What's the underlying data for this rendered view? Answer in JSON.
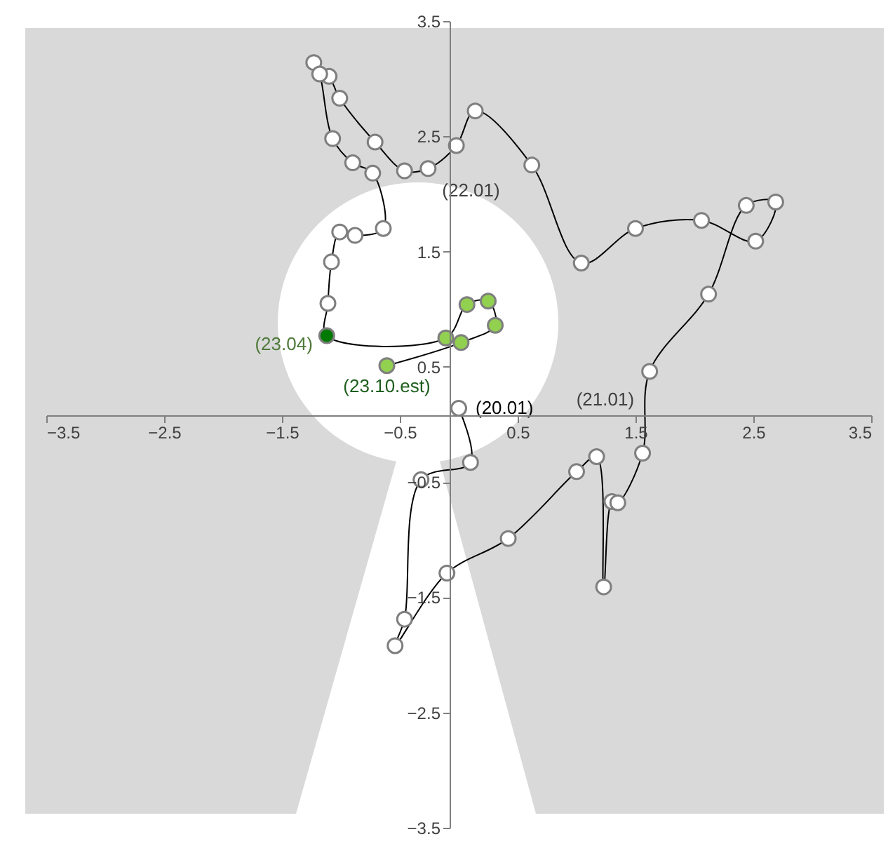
{
  "chart_data": {
    "type": "line",
    "marker": "circle",
    "xlim": [
      -3.5,
      3.5
    ],
    "ylim": [
      -3.5,
      3.5
    ],
    "xticks": [
      -3.5,
      -2.5,
      -1.5,
      -0.5,
      0.5,
      1.5,
      2.5,
      3.5
    ],
    "yticks": [
      -3.5,
      -2.5,
      -1.5,
      -0.5,
      0.5,
      1.5,
      2.5,
      3.5
    ],
    "series": [
      {
        "color": "#000000",
        "x": [
          0,
          0.1,
          -0.32,
          -0.46,
          -0.54,
          -0.1,
          0.42,
          1.0,
          1.17,
          1.23,
          1.3,
          1.35,
          1.56,
          1.62,
          2.12,
          2.44,
          2.69,
          2.52,
          2.06,
          1.5,
          1.04,
          0.62,
          0.14,
          -0.02,
          -0.26,
          -0.46,
          -0.71,
          -1.01,
          -1.1,
          -1.23,
          -1.18,
          -1.07,
          -0.9,
          -0.73,
          -0.64,
          -0.88,
          -1.01,
          -1.08,
          -1.11,
          -1.12,
          -0.11,
          0.07,
          0.25,
          0.31,
          0.02,
          -0.61
        ],
        "values": [
          0.14,
          -0.33,
          -0.48,
          -1.69,
          -1.92,
          -1.29,
          -0.99,
          -0.41,
          -0.28,
          -1.41,
          -0.67,
          -0.68,
          -0.25,
          0.46,
          1.13,
          1.9,
          1.93,
          1.59,
          1.77,
          1.7,
          1.4,
          2.25,
          2.72,
          2.42,
          2.22,
          2.2,
          2.45,
          2.83,
          3.02,
          3.14,
          3.04,
          2.48,
          2.27,
          2.18,
          1.7,
          1.64,
          1.67,
          1.41,
          1.05,
          0.77,
          0.75,
          1.04,
          1.07,
          0.86,
          0.71,
          0.51
        ],
        "colors": [
          "#ffffff",
          "#ffffff",
          "#ffffff",
          "#ffffff",
          "#ffffff",
          "#ffffff",
          "#ffffff",
          "#ffffff",
          "#ffffff",
          "#ffffff",
          "#ffffff",
          "#ffffff",
          "#ffffff",
          "#ffffff",
          "#ffffff",
          "#ffffff",
          "#ffffff",
          "#ffffff",
          "#ffffff",
          "#ffffff",
          "#ffffff",
          "#ffffff",
          "#ffffff",
          "#ffffff",
          "#ffffff",
          "#ffffff",
          "#ffffff",
          "#ffffff",
          "#ffffff",
          "#ffffff",
          "#ffffff",
          "#ffffff",
          "#ffffff",
          "#ffffff",
          "#ffffff",
          "#ffffff",
          "#ffffff",
          "#ffffff",
          "#ffffff",
          "#007a00",
          "#92d050",
          "#92d050",
          "#92d050",
          "#92d050",
          "#92d050",
          "#92d050"
        ]
      }
    ],
    "annotations": [
      {
        "text": "(20.01)",
        "x": 0,
        "y": 0.14
      },
      {
        "text": "(21.01)",
        "x": 1.56,
        "y": -0.25
      },
      {
        "text": "(22.01)",
        "x": -0.26,
        "y": 2.22
      },
      {
        "text": "(23.04)",
        "x": -1.12,
        "y": 0.77
      },
      {
        "text": "(23.10.est)",
        "x": -0.61,
        "y": 0.51
      }
    ]
  }
}
